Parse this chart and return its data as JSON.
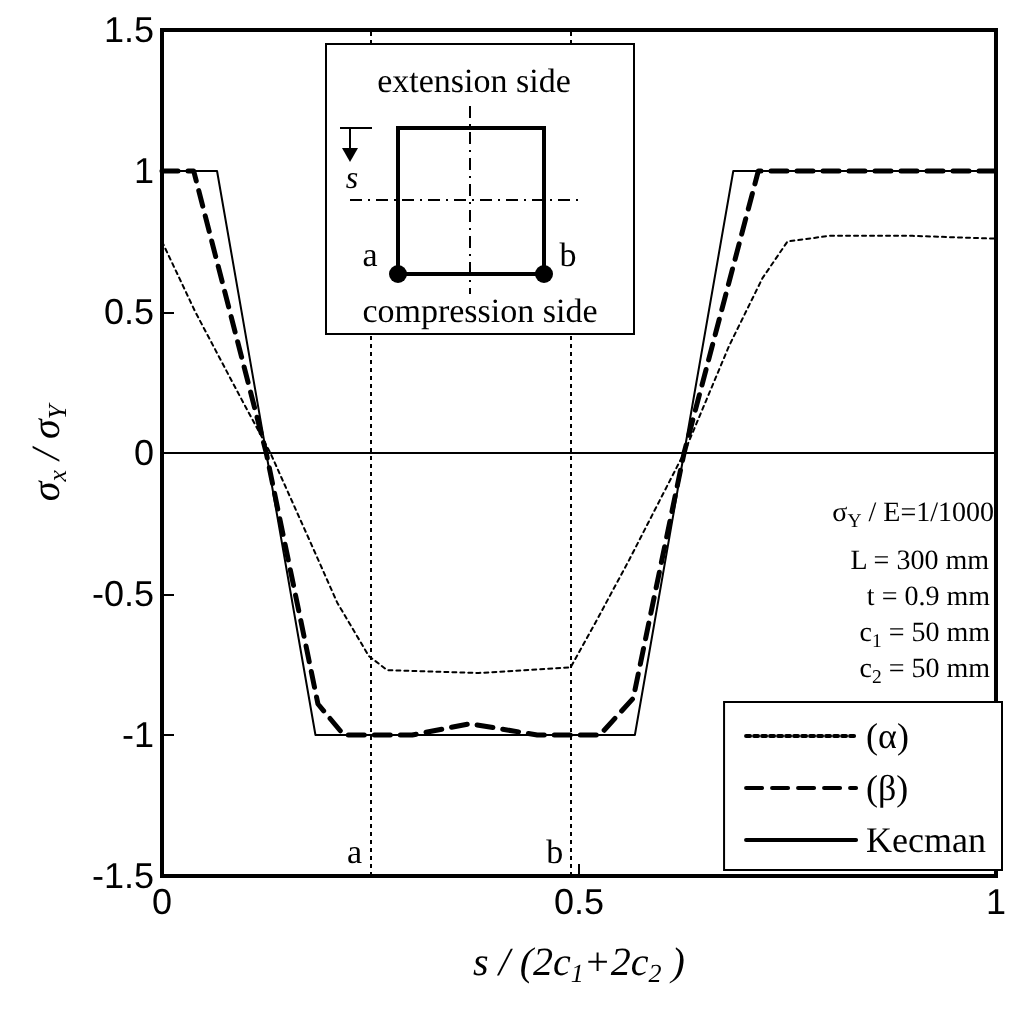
{
  "chart_data": {
    "type": "line",
    "xlabel": "s / (2c$_{1}$+2c$_{2}$ )",
    "ylabel": "σ$_{x}$ / σ$_{Y}$",
    "xlim": [
      0,
      1
    ],
    "xticks": [
      0,
      0.5,
      1
    ],
    "ylim": [
      -1.5,
      1.5
    ],
    "yticks": [
      -1.5,
      -1,
      -0.5,
      0,
      0.5,
      1,
      1.5
    ],
    "grid": false,
    "legend": "bottom right",
    "marker": "none",
    "series": [
      {
        "name": "(α)",
        "color": "#000000",
        "line_style": "dotted",
        "x": [
          0,
          0.04,
          0.09,
          0.13,
          0.18,
          0.21,
          0.248,
          0.27,
          0.38,
          0.49,
          0.52,
          0.56,
          0.626,
          0.68,
          0.72,
          0.75,
          0.8,
          0.9,
          1
        ],
        "values": [
          0.75,
          0.5,
          0.22,
          0,
          -0.33,
          -0.53,
          -0.72,
          -0.77,
          -0.78,
          -0.76,
          -0.6,
          -0.38,
          0,
          0.38,
          0.62,
          0.75,
          0.77,
          0.77,
          0.76
        ]
      },
      {
        "name": "(β)",
        "color": "#000000",
        "line_style": "dashed",
        "x": [
          0,
          0.038,
          0.125,
          0.187,
          0.218,
          0.3,
          0.369,
          0.45,
          0.525,
          0.565,
          0.626,
          0.715,
          1
        ],
        "values": [
          1,
          1,
          0,
          -0.89,
          -1,
          -1,
          -0.96,
          -1,
          -1,
          -0.87,
          0,
          1,
          1
        ]
      },
      {
        "name": "Kecman",
        "color": "#000000",
        "line_style": "solid",
        "x": [
          0,
          0.066,
          0.125,
          0.184,
          0.567,
          0.626,
          0.685,
          1
        ],
        "values": [
          1,
          1,
          0,
          -1,
          -1,
          0,
          1,
          1
        ]
      }
    ],
    "ref_lines": [
      {
        "axis": "y",
        "value": 0,
        "color": "#000000",
        "line_style": "solid"
      },
      {
        "axis": "x",
        "value": 0.25,
        "color": "#000000",
        "line_style": "dotted"
      },
      {
        "axis": "x",
        "value": 0.49,
        "color": "#000000",
        "line_style": "dotted"
      }
    ],
    "annotations": [
      {
        "text": "a",
        "x": 0.25,
        "y": -1.32
      },
      {
        "text": "b",
        "x": 0.49,
        "y": -1.32
      },
      "σ$_{Y}$ / E=1/1000",
      "L = 300 mm",
      "t = 0.9 mm",
      "c$_{1}$ = 50 mm",
      "c$_{2}$ = 50 mm",
      "extension side",
      "s",
      "a",
      "b",
      "compression side"
    ]
  }
}
